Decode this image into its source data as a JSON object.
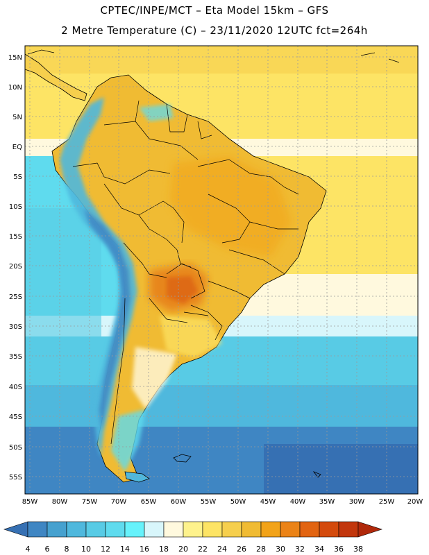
{
  "header": {
    "line1": "CPTEC/INPE/MCT –  Eta Model 15km – GFS",
    "line2": "2 Metre Temperature (C) – 23/11/2020 12UTC fct=264h"
  },
  "axes": {
    "lat_labels": [
      "15N",
      "10N",
      "5N",
      "EQ",
      "5S",
      "10S",
      "15S",
      "20S",
      "25S",
      "30S",
      "35S",
      "40S",
      "45S",
      "50S",
      "55S"
    ],
    "lon_labels": [
      "85W",
      "80W",
      "75W",
      "70W",
      "65W",
      "60W",
      "55W",
      "50W",
      "45W",
      "40W",
      "35W",
      "30W",
      "25W",
      "20W"
    ]
  },
  "colorbar": {
    "labels": [
      "4",
      "6",
      "8",
      "10",
      "12",
      "14",
      "16",
      "18",
      "20",
      "22",
      "24",
      "26",
      "28",
      "30",
      "32",
      "34",
      "36",
      "38"
    ],
    "colors": [
      "#3670b3",
      "#3f86c3",
      "#46a1cf",
      "#4fb8dd",
      "#58cbe5",
      "#5fdbee",
      "#66f2fb",
      "#d8f6fb",
      "#fff9de",
      "#fef28c",
      "#fde465",
      "#f6cf4d",
      "#f0bb33",
      "#f2a319",
      "#eb8317",
      "#e26411",
      "#d44a0c",
      "#c2360c",
      "#b0280a"
    ]
  },
  "palette": {
    "ocean_deep": "#3670b3",
    "ocean_mid": "#46a1cf",
    "ocean_light": "#58cbe5",
    "ocean_cyan": "#5fdbee",
    "ocean_pale": "#d8f6fb",
    "warm_pale": "#fff9de",
    "warm_yellow": "#fde465",
    "land_main": "#f0bb33",
    "land_hot": "#f2a319",
    "land_hottest": "#e26411",
    "andes_cold": "#46a1cf"
  }
}
